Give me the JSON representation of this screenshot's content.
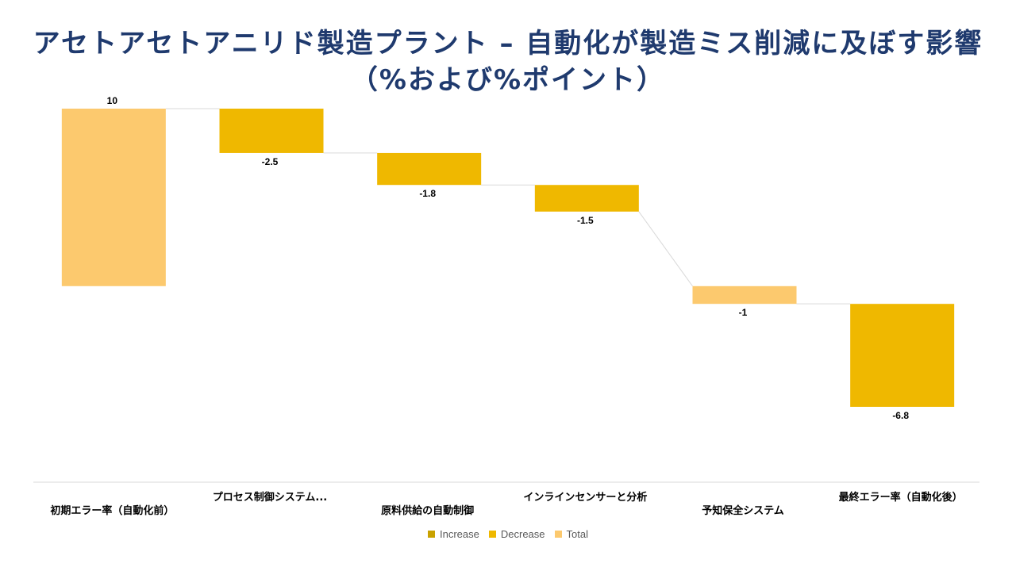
{
  "title": "アセトアセトアニリド製造プラント – 自動化が製造ミス削減に及ぼす影響（%および%ポイント）",
  "colors": {
    "increase": "#c9a200",
    "decrease": "#efb800",
    "total": "#fcc96e",
    "title": "#1f3a6e",
    "connector": "#d9d9d9",
    "axis": "#d9d9d9"
  },
  "legend": [
    {
      "label": "Increase",
      "color_key": "increase"
    },
    {
      "label": "Decrease",
      "color_key": "decrease"
    },
    {
      "label": "Total",
      "color_key": "total"
    }
  ],
  "chart_data": {
    "type": "waterfall",
    "categories": [
      "初期エラー率（自動化前）",
      "プロセス制御システム...",
      "原料供給の自動制御",
      "インラインセンサーと分析",
      "予知保全システム",
      "最終エラー率（自動化後）"
    ],
    "values": [
      10,
      -2.5,
      -1.8,
      -1.5,
      -1,
      -6.8
    ],
    "labels": [
      "10",
      "-2.5",
      "-1.8",
      "-1.5",
      "-1",
      "-6.8"
    ],
    "bar_kind": [
      "total",
      "decrease",
      "decrease",
      "decrease",
      "total",
      "decrease"
    ],
    "bar_ranges": [
      [
        0,
        10
      ],
      [
        7.5,
        10
      ],
      [
        5.7,
        7.5
      ],
      [
        4.2,
        5.7
      ],
      [
        -1,
        0
      ],
      [
        -6.8,
        -1
      ]
    ],
    "ylim": [
      -10,
      11
    ],
    "grid": false,
    "legend_position": "bottom"
  }
}
